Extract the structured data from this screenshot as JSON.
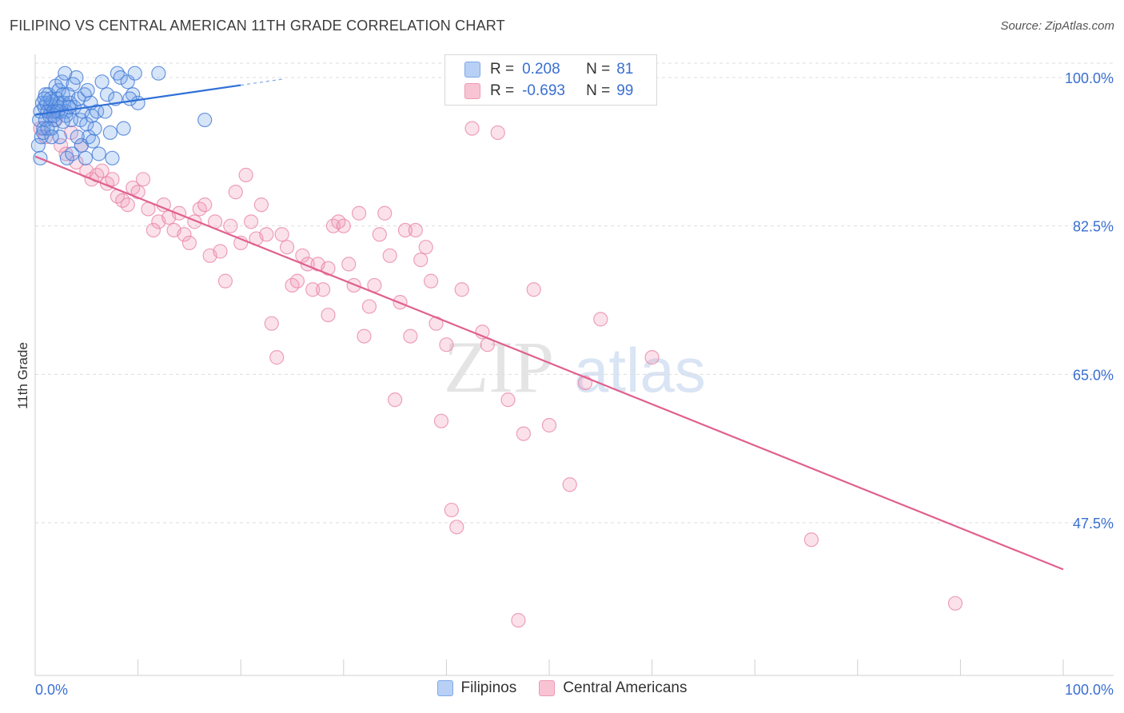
{
  "title": "FILIPINO VS CENTRAL AMERICAN 11TH GRADE CORRELATION CHART",
  "source": "Source: ZipAtlas.com",
  "watermark": {
    "bold": "ZIP",
    "light": "atlas"
  },
  "legend": [
    {
      "r_label": "R =",
      "r_value": "0.208",
      "n_label": "N =",
      "n_value": "81"
    },
    {
      "r_label": "R =",
      "r_value": "-0.693",
      "n_label": "N =",
      "n_value": "99"
    }
  ],
  "chart_data": {
    "type": "scatter",
    "ylabel": "11th Grade",
    "x_tick_labels": [
      "0.0%",
      "100.0%"
    ],
    "y_tick_labels": [
      "100.0%",
      "82.5%",
      "65.0%",
      "47.5%"
    ],
    "xlim": [
      0,
      100
    ],
    "ylim": [
      30,
      101.5
    ],
    "y_ticks": [
      100.0,
      82.5,
      65.0,
      47.5
    ],
    "grid": true,
    "colors": {
      "filipinos": "#5b8fe0",
      "central_americans": "#ec90ad",
      "filipinos_line": "#2f6fd6",
      "central_americans_line": "#e0608e"
    },
    "series": [
      {
        "name": "Filipinos",
        "points": [
          [
            0.3,
            92
          ],
          [
            0.4,
            95
          ],
          [
            0.5,
            96
          ],
          [
            0.6,
            93
          ],
          [
            0.7,
            97
          ],
          [
            0.8,
            94
          ],
          [
            0.9,
            96.5
          ],
          [
            1.0,
            95
          ],
          [
            1.1,
            97
          ],
          [
            1.2,
            96
          ],
          [
            1.3,
            98
          ],
          [
            1.4,
            95.5
          ],
          [
            1.5,
            96.8
          ],
          [
            1.6,
            94
          ],
          [
            1.7,
            97.2
          ],
          [
            1.8,
            96
          ],
          [
            1.9,
            95
          ],
          [
            2.0,
            99
          ],
          [
            2.1,
            97.5
          ],
          [
            2.2,
            96.5
          ],
          [
            2.3,
            98.5
          ],
          [
            2.4,
            97
          ],
          [
            2.5,
            96
          ],
          [
            2.6,
            99.5
          ],
          [
            2.7,
            98
          ],
          [
            2.8,
            97
          ],
          [
            2.9,
            100.5
          ],
          [
            3.0,
            96
          ],
          [
            3.2,
            98
          ],
          [
            3.4,
            97
          ],
          [
            3.5,
            95
          ],
          [
            3.7,
            99.2
          ],
          [
            3.8,
            96.5
          ],
          [
            4.0,
            100
          ],
          [
            4.2,
            97.5
          ],
          [
            4.4,
            95
          ],
          [
            4.5,
            92
          ],
          [
            4.6,
            96
          ],
          [
            4.8,
            98
          ],
          [
            5.0,
            94.5
          ],
          [
            5.2,
            93
          ],
          [
            5.4,
            97
          ],
          [
            5.5,
            95.5
          ],
          [
            5.6,
            92.5
          ],
          [
            6.0,
            96
          ],
          [
            6.2,
            91
          ],
          [
            6.5,
            99.5
          ],
          [
            7.0,
            98
          ],
          [
            7.3,
            93.5
          ],
          [
            7.5,
            90.5
          ],
          [
            8.0,
            100.5
          ],
          [
            8.3,
            100
          ],
          [
            8.6,
            94
          ],
          [
            9.0,
            99.5
          ],
          [
            9.5,
            98
          ],
          [
            9.7,
            100.5
          ],
          [
            10.0,
            97
          ],
          [
            0.5,
            90.5
          ],
          [
            0.8,
            93.5
          ],
          [
            1.2,
            94
          ],
          [
            1.8,
            95.5
          ],
          [
            2.4,
            93
          ],
          [
            3.1,
            90.5
          ],
          [
            3.6,
            91
          ],
          [
            4.1,
            93
          ],
          [
            5.8,
            94
          ],
          [
            1.0,
            98
          ],
          [
            1.5,
            97.5
          ],
          [
            2.2,
            96
          ],
          [
            3.0,
            95.5
          ],
          [
            12.0,
            100.5
          ],
          [
            16.5,
            95
          ],
          [
            7.8,
            97.5
          ],
          [
            9.2,
            97.5
          ],
          [
            3.3,
            96.5
          ],
          [
            4.9,
            90.5
          ],
          [
            6.8,
            96
          ],
          [
            2.7,
            94.8
          ],
          [
            1.6,
            93
          ],
          [
            0.9,
            97.5
          ],
          [
            5.1,
            98.5
          ]
        ],
        "trend": {
          "x": [
            0,
            20
          ],
          "y": [
            95.6,
            99.1
          ]
        },
        "trend_dashed": {
          "x": [
            20,
            24
          ],
          "y": [
            99.1,
            99.8
          ]
        }
      },
      {
        "name": "Central Americans",
        "points": [
          [
            0.5,
            94
          ],
          [
            1.0,
            93
          ],
          [
            1.5,
            96
          ],
          [
            2.0,
            95
          ],
          [
            2.5,
            92
          ],
          [
            3.0,
            91
          ],
          [
            3.5,
            93.5
          ],
          [
            4.0,
            90
          ],
          [
            4.5,
            92
          ],
          [
            5.0,
            89
          ],
          [
            5.5,
            88
          ],
          [
            6.0,
            88.5
          ],
          [
            6.5,
            89
          ],
          [
            7.0,
            87.5
          ],
          [
            7.5,
            88
          ],
          [
            8.0,
            86
          ],
          [
            8.5,
            85.5
          ],
          [
            9.0,
            85
          ],
          [
            9.5,
            87
          ],
          [
            10.0,
            86.5
          ],
          [
            10.5,
            88
          ],
          [
            11.0,
            84.5
          ],
          [
            11.5,
            82
          ],
          [
            12.0,
            83
          ],
          [
            12.5,
            85
          ],
          [
            13.0,
            83.5
          ],
          [
            13.5,
            82
          ],
          [
            14.0,
            84
          ],
          [
            14.5,
            81.5
          ],
          [
            15.0,
            80.5
          ],
          [
            15.5,
            83
          ],
          [
            16.0,
            84.5
          ],
          [
            16.5,
            85
          ],
          [
            17.0,
            79
          ],
          [
            17.5,
            83
          ],
          [
            18.0,
            79.5
          ],
          [
            18.5,
            76
          ],
          [
            19.0,
            82.5
          ],
          [
            19.5,
            86.5
          ],
          [
            20.0,
            80.5
          ],
          [
            20.5,
            88.5
          ],
          [
            21.0,
            83
          ],
          [
            21.5,
            81
          ],
          [
            22.0,
            85
          ],
          [
            22.5,
            81.5
          ],
          [
            23.0,
            71
          ],
          [
            23.5,
            67
          ],
          [
            24.0,
            81.5
          ],
          [
            24.5,
            80
          ],
          [
            25.0,
            75.5
          ],
          [
            25.5,
            76
          ],
          [
            26.0,
            79
          ],
          [
            26.5,
            78
          ],
          [
            27.0,
            75
          ],
          [
            27.5,
            78
          ],
          [
            28.0,
            75
          ],
          [
            28.5,
            77.5
          ],
          [
            29.0,
            82.5
          ],
          [
            29.5,
            83
          ],
          [
            30.0,
            82.5
          ],
          [
            30.5,
            78
          ],
          [
            31.0,
            75.5
          ],
          [
            31.5,
            84
          ],
          [
            32.0,
            69.5
          ],
          [
            32.5,
            73
          ],
          [
            33.0,
            75.5
          ],
          [
            33.5,
            81.5
          ],
          [
            34.0,
            84
          ],
          [
            34.5,
            79
          ],
          [
            35.0,
            62
          ],
          [
            35.5,
            73.5
          ],
          [
            36.0,
            82
          ],
          [
            36.5,
            69.5
          ],
          [
            37.0,
            82
          ],
          [
            37.5,
            78.5
          ],
          [
            38.0,
            80
          ],
          [
            38.5,
            76
          ],
          [
            39.0,
            71
          ],
          [
            39.5,
            59.5
          ],
          [
            40.0,
            68.5
          ],
          [
            40.5,
            49
          ],
          [
            41.0,
            47
          ],
          [
            41.5,
            75
          ],
          [
            42.5,
            94
          ],
          [
            43.5,
            70
          ],
          [
            44.0,
            68.5
          ],
          [
            45.0,
            93.5
          ],
          [
            46.0,
            62
          ],
          [
            47.5,
            58
          ],
          [
            48.5,
            75
          ],
          [
            50.0,
            59
          ],
          [
            52.0,
            52
          ],
          [
            53.5,
            64
          ],
          [
            55.0,
            71.5
          ],
          [
            60.0,
            67
          ],
          [
            75.5,
            45.5
          ],
          [
            89.5,
            38
          ],
          [
            47.0,
            36
          ],
          [
            28.5,
            72
          ]
        ],
        "trend": {
          "x": [
            0,
            100
          ],
          "y": [
            90.7,
            42
          ]
        }
      }
    ]
  }
}
